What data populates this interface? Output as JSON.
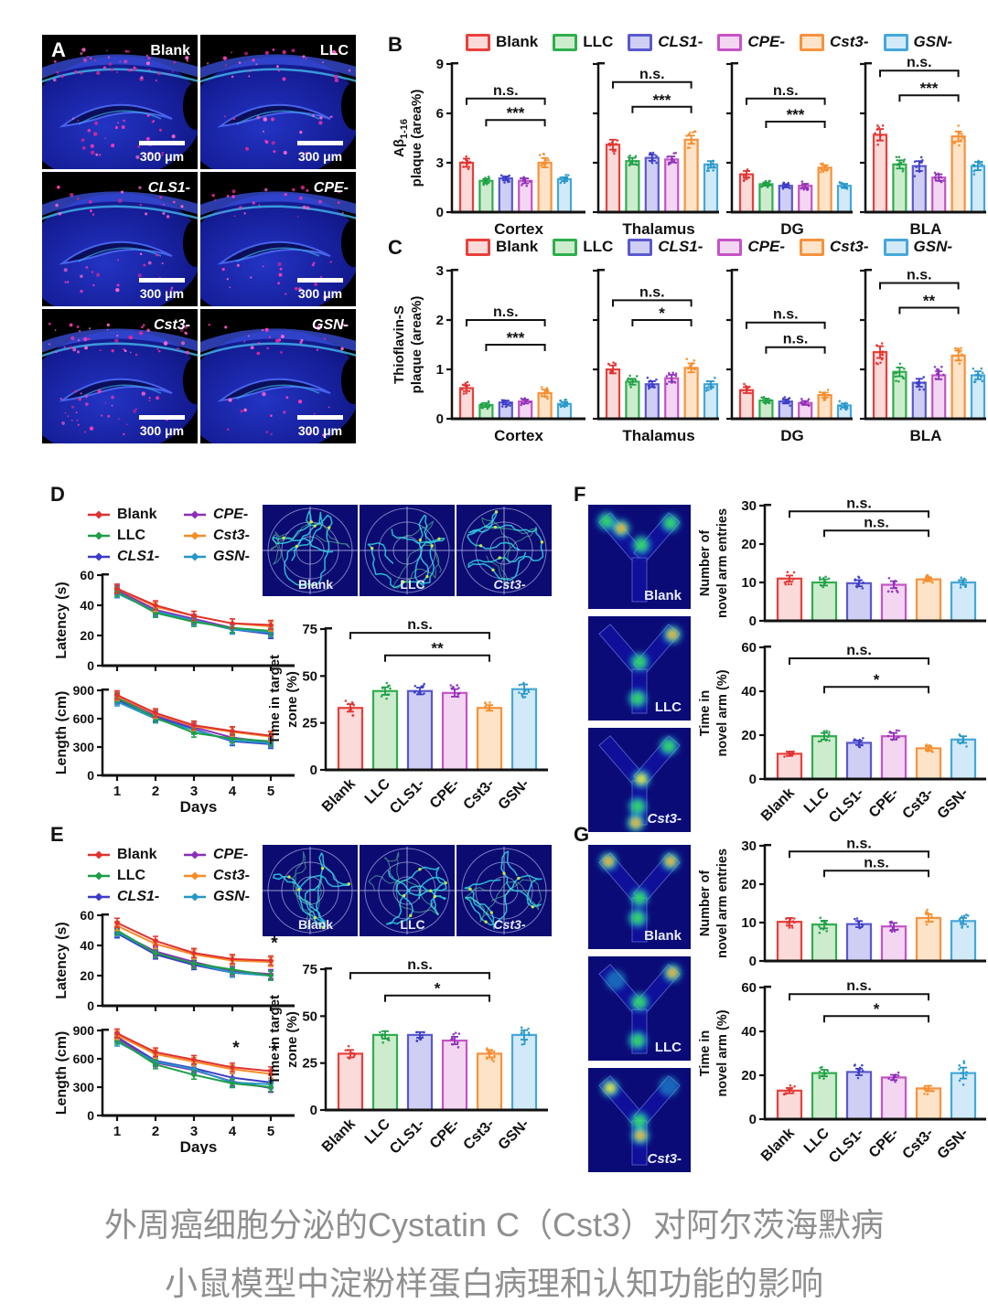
{
  "figure": {
    "panel_labels": {
      "a": "A",
      "b": "B",
      "c": "C",
      "d": "D",
      "e": "E",
      "f": "F",
      "g": "G"
    }
  },
  "groups": [
    {
      "name": "Blank",
      "italic": false,
      "stroke": "#e8403a",
      "fill": "#fbdada",
      "line": "#e03230"
    },
    {
      "name": "LLC",
      "italic": false,
      "stroke": "#2fae4d",
      "fill": "#cdeccd",
      "line": "#1e9e46"
    },
    {
      "name": "CLS1-",
      "italic": true,
      "stroke": "#5a58d0",
      "fill": "#cfcff4",
      "line": "#3b3bc8"
    },
    {
      "name": "CPE-",
      "italic": true,
      "stroke": "#c653c6",
      "fill": "#f2d6f2",
      "line": "#8c2fb8"
    },
    {
      "name": "Cst3-",
      "italic": true,
      "stroke": "#f6923e",
      "fill": "#fde4c8",
      "line": "#f68c28"
    },
    {
      "name": "GSN-",
      "italic": true,
      "stroke": "#45a7da",
      "fill": "#d2eaf8",
      "line": "#2596c8"
    }
  ],
  "panel_a": {
    "images": [
      {
        "label": "Blank",
        "italic": false,
        "scale_bar": "300 μm"
      },
      {
        "label": "LLC",
        "italic": false,
        "scale_bar": "300 μm"
      },
      {
        "label": "CLS1-",
        "italic": true,
        "scale_bar": "300 μm"
      },
      {
        "label": "CPE-",
        "italic": true,
        "scale_bar": "300 μm"
      },
      {
        "label": "Cst3-",
        "italic": true,
        "scale_bar": "300 μm"
      },
      {
        "label": "GSN-",
        "italic": true,
        "scale_bar": "300 μm"
      }
    ]
  },
  "maze_labels": [
    "Blank",
    "LLC",
    "Cst3-"
  ],
  "chart_data": [
    {
      "id": "b",
      "type": "bar",
      "ylabel_lines": [
        [
          {
            "t": "Aβ"
          },
          {
            "t": "1-16",
            "sub": true
          }
        ],
        "plaque (area%)"
      ],
      "ylim": [
        0,
        9
      ],
      "yticks": [
        0,
        3,
        6,
        9
      ],
      "group_names": [
        "Blank",
        "LLC",
        "CLS1-",
        "CPE-",
        "Cst3-",
        "GSN-"
      ],
      "regions": [
        {
          "name": "Cortex",
          "values": [
            3.0,
            1.9,
            2.05,
            1.9,
            3.0,
            2.0
          ],
          "errs": [
            0.25,
            0.12,
            0.12,
            0.15,
            0.28,
            0.12
          ],
          "sig": [
            {
              "from": 0,
              "to": 4,
              "label": "n.s.",
              "y": 6.9
            },
            {
              "from": 1,
              "to": 4,
              "label": "***",
              "y": 5.6
            }
          ]
        },
        {
          "name": "Thalamus",
          "values": [
            4.1,
            3.1,
            3.3,
            3.2,
            4.4,
            2.9
          ],
          "errs": [
            0.3,
            0.2,
            0.18,
            0.18,
            0.25,
            0.2
          ],
          "sig": [
            {
              "from": 0,
              "to": 4,
              "label": "n.s.",
              "y": 7.9
            },
            {
              "from": 1,
              "to": 4,
              "label": "***",
              "y": 6.4
            }
          ]
        },
        {
          "name": "DG",
          "values": [
            2.3,
            1.7,
            1.6,
            1.6,
            2.7,
            1.6
          ],
          "errs": [
            0.2,
            0.1,
            0.1,
            0.12,
            0.15,
            0.12
          ],
          "sig": [
            {
              "from": 0,
              "to": 4,
              "label": "n.s.",
              "y": 6.9
            },
            {
              "from": 1,
              "to": 4,
              "label": "***",
              "y": 5.5
            }
          ]
        },
        {
          "name": "BLA",
          "values": [
            4.7,
            2.9,
            2.8,
            2.1,
            4.6,
            2.8
          ],
          "errs": [
            0.35,
            0.25,
            0.3,
            0.2,
            0.3,
            0.25
          ],
          "sig": [
            {
              "from": 0,
              "to": 4,
              "label": "n.s.",
              "y": 8.6
            },
            {
              "from": 1,
              "to": 4,
              "label": "***",
              "y": 7.1
            }
          ]
        }
      ]
    },
    {
      "id": "c",
      "type": "bar",
      "ylabel_lines": [
        "Thioflavin-S",
        "plaque (area%)"
      ],
      "ylim": [
        0,
        3
      ],
      "yticks": [
        0,
        1,
        2,
        3
      ],
      "group_names": [
        "Blank",
        "LLC",
        "CLS1-",
        "CPE-",
        "Cst3-",
        "GSN-"
      ],
      "regions": [
        {
          "name": "Cortex",
          "values": [
            0.62,
            0.28,
            0.33,
            0.35,
            0.52,
            0.3
          ],
          "errs": [
            0.06,
            0.04,
            0.04,
            0.04,
            0.07,
            0.04
          ],
          "sig": [
            {
              "from": 0,
              "to": 4,
              "label": "n.s.",
              "y": 2.0
            },
            {
              "from": 1,
              "to": 4,
              "label": "***",
              "y": 1.5
            }
          ]
        },
        {
          "name": "Thalamus",
          "values": [
            1.0,
            0.75,
            0.7,
            0.82,
            1.03,
            0.7
          ],
          "errs": [
            0.08,
            0.06,
            0.06,
            0.07,
            0.09,
            0.06
          ],
          "sig": [
            {
              "from": 0,
              "to": 4,
              "label": "n.s.",
              "y": 2.4
            },
            {
              "from": 1,
              "to": 4,
              "label": "*",
              "y": 2.0
            }
          ]
        },
        {
          "name": "DG",
          "values": [
            0.58,
            0.37,
            0.35,
            0.32,
            0.48,
            0.27
          ],
          "errs": [
            0.06,
            0.04,
            0.04,
            0.04,
            0.05,
            0.04
          ],
          "sig": [
            {
              "from": 0,
              "to": 4,
              "label": "n.s.",
              "y": 1.95
            },
            {
              "from": 1,
              "to": 4,
              "label": "n.s.",
              "y": 1.45
            }
          ]
        },
        {
          "name": "BLA",
          "values": [
            1.35,
            0.95,
            0.73,
            0.88,
            1.28,
            0.88
          ],
          "errs": [
            0.12,
            0.09,
            0.08,
            0.08,
            0.1,
            0.08
          ],
          "sig": [
            {
              "from": 0,
              "to": 4,
              "label": "n.s.",
              "y": 2.75
            },
            {
              "from": 1,
              "to": 4,
              "label": "**",
              "y": 2.25
            }
          ]
        }
      ]
    },
    {
      "id": "d_latency",
      "type": "line",
      "ylabel": "Latency (s)",
      "xlabel": "Days",
      "x": [
        1,
        2,
        3,
        4,
        5
      ],
      "ylim": [
        0,
        60
      ],
      "yticks": [
        0,
        20,
        40,
        60
      ],
      "show_x_labels": false,
      "err": 3,
      "annotations": [],
      "series": [
        {
          "name": "Blank",
          "values": [
            51,
            40,
            33,
            28,
            27
          ]
        },
        {
          "name": "LLC",
          "values": [
            49,
            35,
            29,
            25,
            23
          ]
        },
        {
          "name": "CLS1-",
          "values": [
            48,
            36,
            30,
            24,
            21
          ]
        },
        {
          "name": "CPE-",
          "values": [
            50,
            37,
            31,
            25,
            22
          ]
        },
        {
          "name": "Cst3-",
          "values": [
            51,
            39,
            33,
            28,
            26
          ]
        },
        {
          "name": "GSN-",
          "values": [
            48,
            36,
            30,
            24,
            22
          ]
        }
      ]
    },
    {
      "id": "d_length",
      "type": "line",
      "ylabel": "Length (cm)",
      "xlabel": "Days",
      "x": [
        1,
        2,
        3,
        4,
        5
      ],
      "ylim": [
        0,
        900
      ],
      "yticks": [
        0,
        300,
        600,
        900
      ],
      "show_x_labels": true,
      "err": 45,
      "annotations": [],
      "series": [
        {
          "name": "Blank",
          "values": [
            850,
            660,
            530,
            470,
            420
          ]
        },
        {
          "name": "LLC",
          "values": [
            820,
            610,
            450,
            390,
            360
          ]
        },
        {
          "name": "CLS1-",
          "values": [
            800,
            620,
            490,
            360,
            330
          ]
        },
        {
          "name": "CPE-",
          "values": [
            830,
            640,
            510,
            400,
            350
          ]
        },
        {
          "name": "Cst3-",
          "values": [
            840,
            650,
            520,
            460,
            410
          ]
        },
        {
          "name": "GSN-",
          "values": [
            780,
            600,
            480,
            370,
            340
          ]
        }
      ]
    },
    {
      "id": "d_target",
      "type": "bar_single",
      "ylabel_lines": [
        "Time in target",
        "zone (%)"
      ],
      "ylim": [
        0,
        75
      ],
      "yticks": [
        0,
        25,
        50,
        75
      ],
      "show_x_labels": true,
      "categories": [
        "Blank",
        "LLC",
        "CLS1-",
        "CPE-",
        "Cst3-",
        "GSN-"
      ],
      "values": [
        33,
        42,
        42,
        41,
        33,
        43
      ],
      "errs": [
        2,
        2,
        1.8,
        2,
        1.5,
        2.5
      ],
      "sig": [
        {
          "from": 0,
          "to": 4,
          "label": "n.s.",
          "y": 73
        },
        {
          "from": 1,
          "to": 4,
          "label": "**",
          "y": 61
        }
      ]
    },
    {
      "id": "e_latency",
      "type": "line",
      "ylabel": "Latency (s)",
      "xlabel": "Days",
      "x": [
        1,
        2,
        3,
        4,
        5
      ],
      "ylim": [
        0,
        60
      ],
      "yticks": [
        0,
        20,
        40,
        60
      ],
      "show_x_labels": false,
      "err": 3,
      "annotations": [
        {
          "x": 5,
          "y": 38,
          "label": "*"
        }
      ],
      "series": [
        {
          "name": "Blank",
          "values": [
            55,
            43,
            35,
            31,
            30
          ]
        },
        {
          "name": "LLC",
          "values": [
            50,
            35,
            28,
            24,
            20
          ]
        },
        {
          "name": "CLS1-",
          "values": [
            48,
            34,
            27,
            22,
            20
          ]
        },
        {
          "name": "CPE-",
          "values": [
            49,
            36,
            29,
            23,
            21
          ]
        },
        {
          "name": "Cst3-",
          "values": [
            53,
            41,
            34,
            30,
            29
          ]
        },
        {
          "name": "GSN-",
          "values": [
            49,
            35,
            28,
            22,
            20
          ]
        }
      ]
    },
    {
      "id": "e_length",
      "type": "line",
      "ylabel": "Length (cm)",
      "xlabel": "Days",
      "x": [
        1,
        2,
        3,
        4,
        5
      ],
      "ylim": [
        0,
        900
      ],
      "yticks": [
        0,
        300,
        600,
        900
      ],
      "show_x_labels": true,
      "err": 45,
      "annotations": [
        {
          "x": 4,
          "y": 660,
          "label": "*"
        },
        {
          "x": 5,
          "y": 620,
          "label": "*"
        }
      ],
      "series": [
        {
          "name": "Blank",
          "values": [
            870,
            670,
            590,
            510,
            470
          ]
        },
        {
          "name": "LLC",
          "values": [
            800,
            540,
            430,
            340,
            300
          ]
        },
        {
          "name": "CLS1-",
          "values": [
            830,
            580,
            500,
            400,
            350
          ]
        },
        {
          "name": "CPE-",
          "values": [
            820,
            560,
            480,
            360,
            290
          ]
        },
        {
          "name": "Cst3-",
          "values": [
            850,
            650,
            570,
            490,
            440
          ]
        },
        {
          "name": "GSN-",
          "values": [
            780,
            570,
            490,
            350,
            330
          ]
        }
      ]
    },
    {
      "id": "e_target",
      "type": "bar_single",
      "ylabel_lines": [
        "Time in target",
        "zone (%)"
      ],
      "ylim": [
        0,
        75
      ],
      "yticks": [
        0,
        25,
        50,
        75
      ],
      "show_x_labels": true,
      "categories": [
        "Blank",
        "LLC",
        "CLS1-",
        "CPE-",
        "Cst3-",
        "GSN-"
      ],
      "values": [
        30,
        40,
        40,
        37,
        30,
        40
      ],
      "errs": [
        2,
        2,
        1.5,
        2,
        2,
        2.5
      ],
      "sig": [
        {
          "from": 0,
          "to": 4,
          "label": "n.s.",
          "y": 73
        },
        {
          "from": 1,
          "to": 4,
          "label": "*",
          "y": 61
        }
      ]
    },
    {
      "id": "f_entries",
      "type": "bar_single",
      "ylabel_lines": [
        "Number of",
        "novel arm entries"
      ],
      "ylim": [
        0,
        30
      ],
      "yticks": [
        0,
        10,
        20,
        30
      ],
      "show_x_labels": false,
      "categories": [
        "Blank",
        "LLC",
        "CLS1-",
        "CPE-",
        "Cst3-",
        "GSN-"
      ],
      "values": [
        11,
        10,
        9.8,
        9.4,
        10.8,
        10
      ],
      "errs": [
        0.8,
        0.8,
        0.8,
        0.9,
        0.5,
        0.6
      ],
      "sig": [
        {
          "from": 0,
          "to": 4,
          "label": "n.s.",
          "y": 28.5
        },
        {
          "from": 1,
          "to": 4,
          "label": "n.s.",
          "y": 23.5
        }
      ]
    },
    {
      "id": "f_time",
      "type": "bar_single",
      "ylabel_lines": [
        "Time in",
        "novel arm (%)"
      ],
      "ylim": [
        0,
        60
      ],
      "yticks": [
        0,
        20,
        40,
        60
      ],
      "show_x_labels": true,
      "categories": [
        "Blank",
        "LLC",
        "CLS1-",
        "CPE-",
        "Cst3-",
        "GSN-"
      ],
      "values": [
        11.5,
        19.5,
        16.5,
        19.5,
        14,
        18
      ],
      "errs": [
        1,
        1.5,
        1,
        1.5,
        1,
        1.5
      ],
      "sig": [
        {
          "from": 0,
          "to": 4,
          "label": "n.s.",
          "y": 55
        },
        {
          "from": 1,
          "to": 4,
          "label": "*",
          "y": 42
        }
      ]
    },
    {
      "id": "g_entries",
      "type": "bar_single",
      "ylabel_lines": [
        "Number of",
        "novel arm entries"
      ],
      "ylim": [
        0,
        30
      ],
      "yticks": [
        0,
        10,
        20,
        30
      ],
      "show_x_labels": false,
      "categories": [
        "Blank",
        "LLC",
        "CLS1-",
        "CPE-",
        "Cst3-",
        "GSN-"
      ],
      "values": [
        10.2,
        9.5,
        9.6,
        9.0,
        11.2,
        10.4
      ],
      "errs": [
        1,
        1,
        0.8,
        0.9,
        1,
        0.8
      ],
      "sig": [
        {
          "from": 0,
          "to": 4,
          "label": "n.s.",
          "y": 28.5
        },
        {
          "from": 1,
          "to": 4,
          "label": "n.s.",
          "y": 23.5
        }
      ]
    },
    {
      "id": "g_time",
      "type": "bar_single",
      "ylabel_lines": [
        "Time in",
        "novel arm (%)"
      ],
      "ylim": [
        0,
        60
      ],
      "yticks": [
        0,
        20,
        40,
        60
      ],
      "show_x_labels": true,
      "categories": [
        "Blank",
        "LLC",
        "CLS1-",
        "CPE-",
        "Cst3-",
        "GSN-"
      ],
      "values": [
        13,
        21,
        21.5,
        19,
        14,
        21
      ],
      "errs": [
        1.2,
        1.5,
        1.5,
        1.2,
        1.2,
        2.5
      ],
      "sig": [
        {
          "from": 0,
          "to": 4,
          "label": "n.s.",
          "y": 57
        },
        {
          "from": 1,
          "to": 4,
          "label": "*",
          "y": 47
        }
      ]
    }
  ],
  "caption": {
    "line1": "外周癌细胞分泌的Cystatin C（Cst3）对阿尔茨海默病",
    "line2": "小鼠模型中淀粉样蛋白病理和认知功能的影响"
  }
}
